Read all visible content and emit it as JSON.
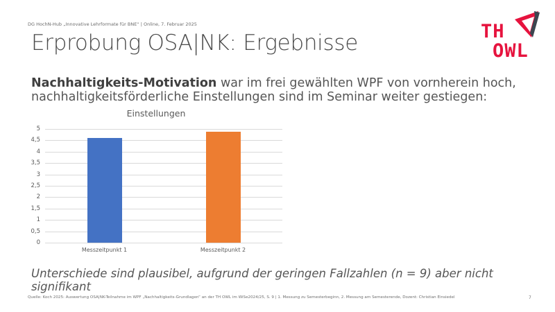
{
  "header": {
    "meta": "DG HochN-Hub „Innovative Lehrformate für BNE“ | Online, 7. Februar 2025",
    "title": "Erprobung OSA|NK: Ergebnisse"
  },
  "logo": {
    "line1": "TH",
    "line2": "OWL",
    "colors": {
      "red": "#e6133e",
      "dark": "#3c4650"
    }
  },
  "body": {
    "bold_lead": "Nachhaltigkeits-Motivation",
    "line1_rest": " war im frei gewählten WPF von vornherein hoch,",
    "line2": "nachhaltigkeitsförderliche Einstellungen sind im Seminar weiter gestiegen:"
  },
  "chart_data": {
    "type": "bar",
    "title": "Einstellungen",
    "categories": [
      "Messzeitpunkt 1",
      "Messzeitpunkt 2"
    ],
    "values": [
      4.6,
      4.87
    ],
    "colors": [
      "#4472c4",
      "#ed7d31"
    ],
    "xlabel": "",
    "ylabel": "",
    "ylim": [
      0,
      5
    ],
    "yticks": [
      "0",
      "0,5",
      "1",
      "1,5",
      "2",
      "2,5",
      "3",
      "3,5",
      "4",
      "4,5",
      "5"
    ],
    "grid": true,
    "legend": "none"
  },
  "conclusion": "Unterschiede sind plausibel, aufgrund der geringen Fallzahlen (n = 9) aber nicht signifikant",
  "footer": {
    "source": "Quelle: Koch 2025: Auswertung OSA|NK-Teilnahme im WPF „Nachhaltigkeits-Grundlagen“ an der TH OWL im WiSe2024/25, S. 9 | 1. Messung zu Semesterbeginn, 2. Messung am Semesterende, Dozent: Christian Einsiedel",
    "page_number": "7"
  }
}
